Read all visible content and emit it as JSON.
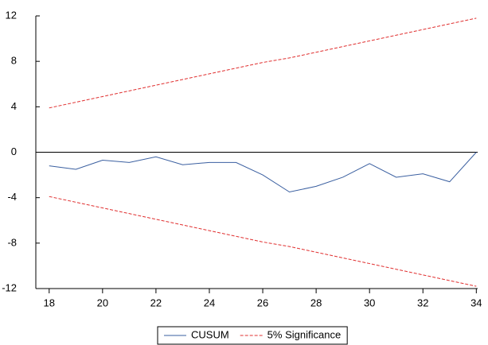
{
  "chart_data": {
    "type": "line",
    "x": [
      18,
      19,
      20,
      21,
      22,
      23,
      24,
      25,
      26,
      27,
      28,
      29,
      30,
      31,
      32,
      33,
      34
    ],
    "series": [
      {
        "name": "CUSUM",
        "color": "#3a5fa0",
        "dash": "solid",
        "values": [
          -1.2,
          -1.5,
          -0.7,
          -0.9,
          -0.4,
          -1.1,
          -0.9,
          -0.9,
          -2.0,
          -3.5,
          -3.0,
          -2.2,
          -1.0,
          -2.2,
          -1.9,
          -2.6,
          0.0
        ]
      },
      {
        "name": "5% Significance",
        "color": "#e03030",
        "dash": "dashed",
        "values": [
          3.9,
          4.4,
          4.9,
          5.4,
          5.9,
          6.4,
          6.9,
          7.4,
          7.9,
          8.3,
          8.8,
          9.3,
          9.8,
          10.3,
          10.8,
          11.3,
          11.8
        ]
      },
      {
        "color": "#e03030",
        "dash": "dashed",
        "values": [
          -3.9,
          -4.4,
          -4.9,
          -5.4,
          -5.9,
          -6.4,
          -6.9,
          -7.4,
          -7.9,
          -8.3,
          -8.8,
          -9.3,
          -9.8,
          -10.3,
          -10.8,
          -11.3,
          -11.8
        ]
      }
    ],
    "xlim": [
      17.5,
      34.05
    ],
    "xticks": [
      18,
      20,
      22,
      24,
      26,
      28,
      30,
      32,
      34
    ],
    "ylim": [
      -12,
      12
    ],
    "yticks": [
      -12,
      -8,
      -4,
      0,
      4,
      8,
      12
    ],
    "zero_line": true,
    "legend": "bottom"
  }
}
